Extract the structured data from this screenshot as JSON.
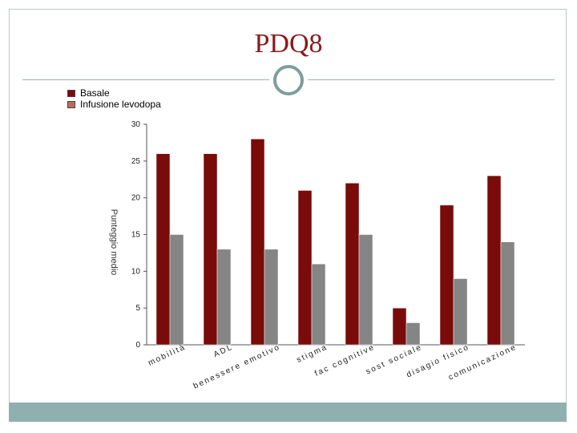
{
  "title": "PDQ8",
  "legend": [
    {
      "label": "Basale",
      "color": "#7a0b0b"
    },
    {
      "label": "Infusione levodopa",
      "color": "#c06a5e"
    }
  ],
  "chart_data": {
    "type": "bar",
    "title": "PDQ8",
    "ylabel": "Punteggio medio",
    "xlabel": "",
    "ylim": [
      0,
      30
    ],
    "yticks": [
      0,
      5,
      10,
      15,
      20,
      25,
      30
    ],
    "categories": [
      "mobilità",
      "ADL",
      "benessere emotivo",
      "stigma",
      "fac cognitive",
      "sost sociale",
      "disagio fisico",
      "comunicazione"
    ],
    "series": [
      {
        "name": "Basale",
        "color": "#7a0b0b",
        "values": [
          26,
          26,
          28,
          21,
          22,
          5,
          19,
          23
        ]
      },
      {
        "name": "Infusione levodopa",
        "color": "#858585",
        "values": [
          15,
          13,
          13,
          11,
          15,
          3,
          9,
          14
        ]
      }
    ],
    "legend_position": "top-left",
    "grid": false
  }
}
